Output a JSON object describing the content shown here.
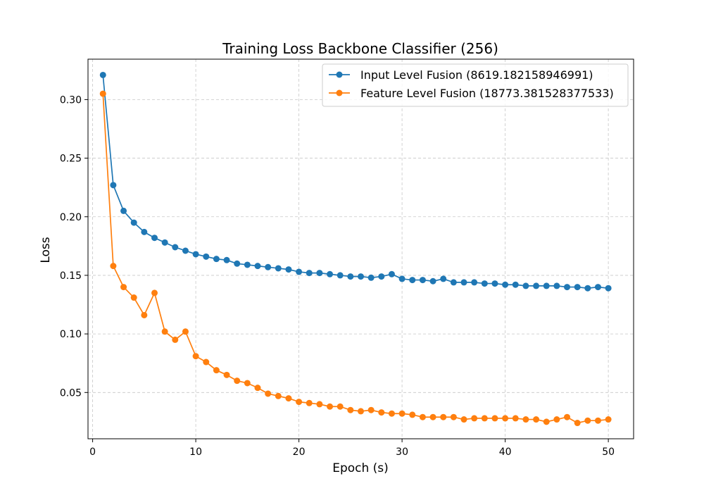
{
  "chart_data": {
    "type": "line",
    "title": "Training Loss Backbone Classifier (256)",
    "xlabel": "Epoch (s)",
    "ylabel": "Loss",
    "xlim": [
      -0.45,
      52.45
    ],
    "ylim": [
      0.0105,
      0.3345
    ],
    "xticks": [
      0,
      10,
      20,
      30,
      40,
      50
    ],
    "yticks": [
      0.05,
      0.1,
      0.15,
      0.2,
      0.25,
      0.3
    ],
    "xtick_labels": [
      "0",
      "10",
      "20",
      "30",
      "40",
      "50"
    ],
    "ytick_labels": [
      "0.05",
      "0.10",
      "0.15",
      "0.20",
      "0.25",
      "0.30"
    ],
    "grid": true,
    "legend_position": "top-right",
    "x": [
      1,
      2,
      3,
      4,
      5,
      6,
      7,
      8,
      9,
      10,
      11,
      12,
      13,
      14,
      15,
      16,
      17,
      18,
      19,
      20,
      21,
      22,
      23,
      24,
      25,
      26,
      27,
      28,
      29,
      30,
      31,
      32,
      33,
      34,
      35,
      36,
      37,
      38,
      39,
      40,
      41,
      42,
      43,
      44,
      45,
      46,
      47,
      48,
      49,
      50
    ],
    "series": [
      {
        "name": "Input Level Fusion (8619.182158946991)",
        "color": "#1f77b4",
        "values": [
          0.321,
          0.227,
          0.205,
          0.195,
          0.187,
          0.182,
          0.178,
          0.174,
          0.171,
          0.168,
          0.166,
          0.164,
          0.163,
          0.16,
          0.159,
          0.158,
          0.157,
          0.156,
          0.155,
          0.153,
          0.152,
          0.152,
          0.151,
          0.15,
          0.149,
          0.149,
          0.148,
          0.149,
          0.151,
          0.147,
          0.146,
          0.146,
          0.145,
          0.147,
          0.144,
          0.144,
          0.144,
          0.143,
          0.143,
          0.142,
          0.142,
          0.141,
          0.141,
          0.141,
          0.141,
          0.14,
          0.14,
          0.139,
          0.14,
          0.139
        ]
      },
      {
        "name": "Feature Level Fusion (18773.381528377533)",
        "color": "#ff7f0e",
        "values": [
          0.305,
          0.158,
          0.14,
          0.131,
          0.116,
          0.135,
          0.102,
          0.095,
          0.102,
          0.081,
          0.076,
          0.069,
          0.065,
          0.06,
          0.058,
          0.054,
          0.049,
          0.047,
          0.045,
          0.042,
          0.041,
          0.04,
          0.038,
          0.038,
          0.035,
          0.034,
          0.035,
          0.033,
          0.032,
          0.032,
          0.031,
          0.029,
          0.029,
          0.029,
          0.029,
          0.027,
          0.028,
          0.028,
          0.028,
          0.028,
          0.028,
          0.027,
          0.027,
          0.025,
          0.027,
          0.029,
          0.024,
          0.026,
          0.026,
          0.027
        ]
      }
    ]
  }
}
